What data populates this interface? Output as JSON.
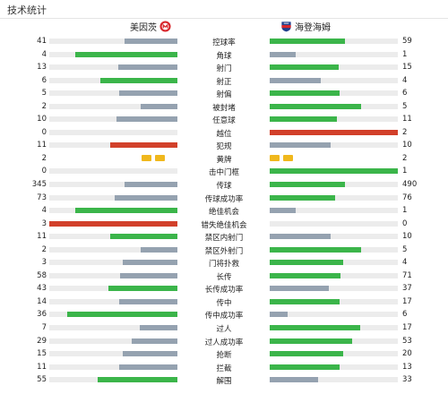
{
  "header": {
    "title": "技术统计"
  },
  "teams": {
    "home": "美因茨",
    "away": "海登海姆"
  },
  "colors": {
    "home_fill": "#95a2b0",
    "win_fill": "#3bb54a",
    "red_fill": "#d2402a",
    "yellow_card": "#f0b81d",
    "track": "#ececec"
  },
  "stats": [
    {
      "label": "控球率",
      "home": "41",
      "away": "59",
      "hv": 41,
      "av": 59,
      "hc": "gray",
      "ac": "green"
    },
    {
      "label": "角球",
      "home": "4",
      "away": "1",
      "hv": 4,
      "av": 1,
      "hc": "green",
      "ac": "gray"
    },
    {
      "label": "射门",
      "home": "13",
      "away": "15",
      "hv": 13,
      "av": 15,
      "hc": "gray",
      "ac": "green"
    },
    {
      "label": "射正",
      "home": "6",
      "away": "4",
      "hv": 6,
      "av": 4,
      "hc": "green",
      "ac": "gray"
    },
    {
      "label": "射偏",
      "home": "5",
      "away": "6",
      "hv": 5,
      "av": 6,
      "hc": "gray",
      "ac": "green"
    },
    {
      "label": "被封堵",
      "home": "2",
      "away": "5",
      "hv": 2,
      "av": 5,
      "hc": "gray",
      "ac": "green"
    },
    {
      "label": "任意球",
      "home": "10",
      "away": "11",
      "hv": 10,
      "av": 11,
      "hc": "gray",
      "ac": "green"
    },
    {
      "label": "越位",
      "home": "0",
      "away": "2",
      "hv": 0,
      "av": 2,
      "hc": "gray",
      "ac": "red"
    },
    {
      "label": "犯规",
      "home": "11",
      "away": "10",
      "hv": 11,
      "av": 10,
      "hc": "red",
      "ac": "gray"
    },
    {
      "label": "黄牌",
      "home": "2",
      "away": "2",
      "cards": true,
      "hcards": 2,
      "acards": 2
    },
    {
      "label": "击中门框",
      "home": "0",
      "away": "1",
      "hv": 0,
      "av": 1,
      "hc": "gray",
      "ac": "green"
    },
    {
      "label": "传球",
      "home": "345",
      "away": "490",
      "hv": 345,
      "av": 490,
      "hc": "gray",
      "ac": "green"
    },
    {
      "label": "传球成功率",
      "home": "73",
      "away": "76",
      "hv": 73,
      "av": 76,
      "hc": "gray",
      "ac": "green"
    },
    {
      "label": "绝佳机会",
      "home": "4",
      "away": "1",
      "hv": 4,
      "av": 1,
      "hc": "green",
      "ac": "gray"
    },
    {
      "label": "错失绝佳机会",
      "home": "3",
      "away": "0",
      "hv": 3,
      "av": 0,
      "hc": "red",
      "ac": "gray"
    },
    {
      "label": "禁区内射门",
      "home": "11",
      "away": "10",
      "hv": 11,
      "av": 10,
      "hc": "green",
      "ac": "gray"
    },
    {
      "label": "禁区外射门",
      "home": "2",
      "away": "5",
      "hv": 2,
      "av": 5,
      "hc": "gray",
      "ac": "green"
    },
    {
      "label": "门将扑救",
      "home": "3",
      "away": "4",
      "hv": 3,
      "av": 4,
      "hc": "gray",
      "ac": "green"
    },
    {
      "label": "长传",
      "home": "58",
      "away": "71",
      "hv": 58,
      "av": 71,
      "hc": "gray",
      "ac": "green"
    },
    {
      "label": "长传成功率",
      "home": "43",
      "away": "37",
      "hv": 43,
      "av": 37,
      "hc": "green",
      "ac": "gray"
    },
    {
      "label": "传中",
      "home": "14",
      "away": "17",
      "hv": 14,
      "av": 17,
      "hc": "gray",
      "ac": "green"
    },
    {
      "label": "传中成功率",
      "home": "36",
      "away": "6",
      "hv": 36,
      "av": 6,
      "hc": "green",
      "ac": "gray"
    },
    {
      "label": "过人",
      "home": "7",
      "away": "17",
      "hv": 7,
      "av": 17,
      "hc": "gray",
      "ac": "green"
    },
    {
      "label": "过人成功率",
      "home": "29",
      "away": "53",
      "hv": 29,
      "av": 53,
      "hc": "gray",
      "ac": "green"
    },
    {
      "label": "抢断",
      "home": "15",
      "away": "20",
      "hv": 15,
      "av": 20,
      "hc": "gray",
      "ac": "green"
    },
    {
      "label": "拦截",
      "home": "11",
      "away": "13",
      "hv": 11,
      "av": 13,
      "hc": "gray",
      "ac": "green"
    },
    {
      "label": "解围",
      "home": "55",
      "away": "33",
      "hv": 55,
      "av": 33,
      "hc": "green",
      "ac": "gray"
    }
  ]
}
